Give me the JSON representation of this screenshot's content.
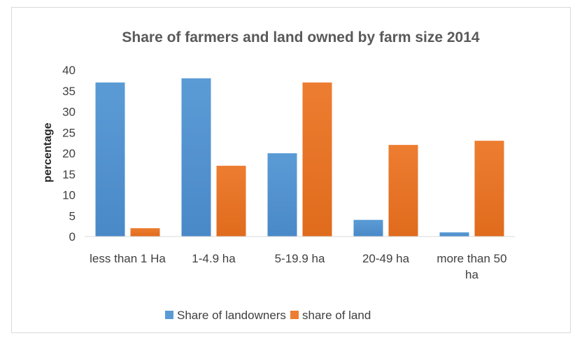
{
  "chart_data": {
    "type": "bar",
    "title": "Share of  farmers and land owned by farm size 2014",
    "xlabel": "",
    "ylabel": "percentage",
    "categories": [
      [
        "less than 1 Ha"
      ],
      [
        "1-4.9 ha"
      ],
      [
        "5-19.9 ha"
      ],
      [
        "20-49 ha"
      ],
      [
        "more than 50",
        "ha"
      ]
    ],
    "series": [
      {
        "name": "Share of landowners",
        "values": [
          37,
          38,
          20,
          4,
          1
        ]
      },
      {
        "name": "share of land",
        "values": [
          2,
          17,
          37,
          22,
          23
        ]
      }
    ],
    "ylim": [
      0,
      40
    ],
    "yticks": [
      "0",
      "5",
      "10",
      "15",
      "20",
      "25",
      "30",
      "35",
      "40"
    ],
    "grid": false,
    "legend_position": "bottom",
    "colors": {
      "series": [
        "#5b9bd5",
        "#ed7d31"
      ],
      "series_dark": [
        "#4a89c8",
        "#e06b1d"
      ],
      "axis": "#d9d9d9"
    }
  }
}
